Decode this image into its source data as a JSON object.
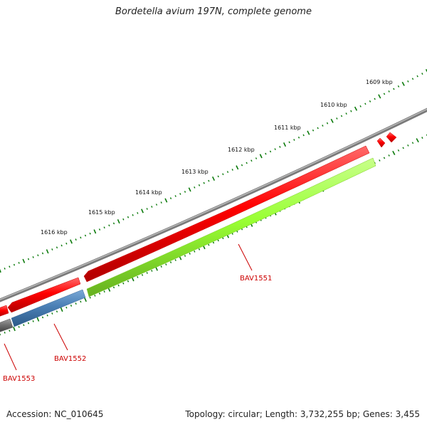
{
  "map": {
    "title": "Bordetella avium 197N, complete genome",
    "accession": "Accession: NC_010645",
    "summary": "Topology: circular; Length: 3,732,255 bp; Genes: 3,455"
  },
  "ruler": {
    "labels": [
      "1609 kbp",
      "1610 kbp",
      "1611 kbp",
      "1612 kbp",
      "1613 kbp",
      "1614 kbp",
      "1615 kbp",
      "1616 kbp"
    ],
    "tick_color": "#0a7a0a"
  },
  "genes": [
    {
      "name": "BAV1551",
      "color": "#ff0000",
      "label_color": "#cc0000"
    },
    {
      "name": "BAV1552",
      "color": "#ff0000",
      "label_color": "#cc0000"
    },
    {
      "name": "BAV1553",
      "color": "#ff0000",
      "label_color": "#cc0000"
    }
  ],
  "colors": {
    "backbone": "#808080",
    "cds_forward": "#ff0000",
    "feature_green": "#99ff33",
    "feature_blue": "#4a7fb5",
    "feature_gray": "#707070",
    "ticks": "#0a7a0a"
  }
}
